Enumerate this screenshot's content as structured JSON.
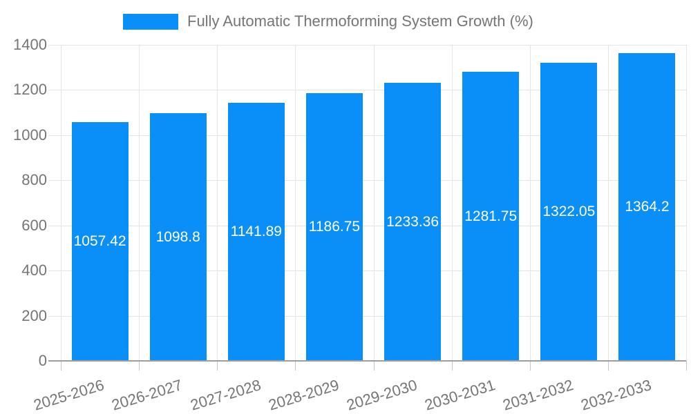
{
  "chart_data": {
    "type": "bar",
    "title": "Fully Automatic Thermoforming System Growth (%)",
    "categories": [
      "2025-2026",
      "2026-2027",
      "2027-2028",
      "2028-2029",
      "2029-2030",
      "2030-2031",
      "2031-2032",
      "2032-2033"
    ],
    "values": [
      1057.42,
      1098.8,
      1141.89,
      1186.75,
      1233.36,
      1281.75,
      1322.05,
      1364.2
    ],
    "value_labels": [
      "1057.42",
      "1098.8",
      "1141.89",
      "1186.75",
      "1233.36",
      "1281.75",
      "1322.05",
      "1364.2"
    ],
    "xlabel": "",
    "ylabel": "",
    "ylim": [
      0,
      1400
    ],
    "yticks": [
      0,
      200,
      400,
      600,
      800,
      1000,
      1200,
      1400
    ],
    "grid": true,
    "legend_position": "top",
    "x_label_rotation_deg": -17,
    "colors": {
      "bar": "#0a8ff9",
      "axis_text": "#757575",
      "value_text": "#ffffff",
      "gridline": "#e4e4e4",
      "baseline": "#9e9e9e",
      "tick": "#c4c4c4",
      "background": "#ffffff"
    }
  }
}
